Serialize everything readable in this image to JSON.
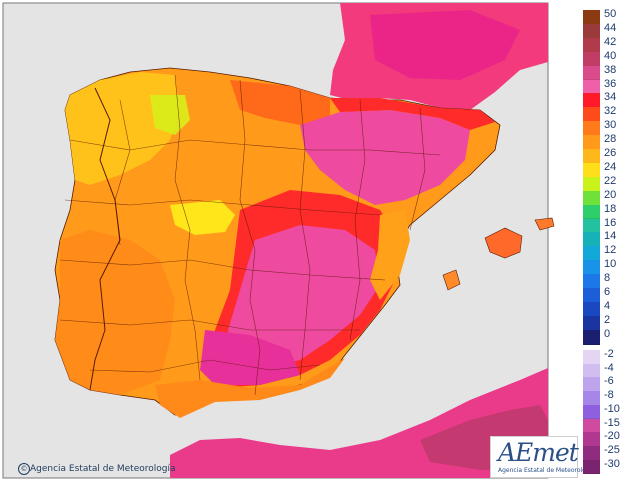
{
  "map": {
    "credit": "Agencia Estatal de Meteorología",
    "logo": {
      "word": "AEmet",
      "sub": "Agencia Estatal de Meteorología"
    }
  },
  "legend": [
    {
      "label": "50",
      "color": "#8b3a12"
    },
    {
      "label": "44",
      "color": "#9a3a3a"
    },
    {
      "label": "42",
      "color": "#b03b4a"
    },
    {
      "label": "40",
      "color": "#c03d65"
    },
    {
      "label": "38",
      "color": "#d94b8a"
    },
    {
      "label": "36",
      "color": "#f060a8"
    },
    {
      "label": "34",
      "color": "#ff1a2a"
    },
    {
      "label": "32",
      "color": "#ff4a1a"
    },
    {
      "label": "30",
      "color": "#ff7a1a"
    },
    {
      "label": "28",
      "color": "#ff9a1a"
    },
    {
      "label": "26",
      "color": "#ffb81a"
    },
    {
      "label": "24",
      "color": "#ffdf1a"
    },
    {
      "label": "22",
      "color": "#c8f21a"
    },
    {
      "label": "20",
      "color": "#70e03a"
    },
    {
      "label": "18",
      "color": "#2ecf6a"
    },
    {
      "label": "16",
      "color": "#22c2a0"
    },
    {
      "label": "14",
      "color": "#17b2b8"
    },
    {
      "label": "12",
      "color": "#12a8d8"
    },
    {
      "label": "10",
      "color": "#1893e8"
    },
    {
      "label": "8",
      "color": "#1c78e6"
    },
    {
      "label": "6",
      "color": "#1c5ed8"
    },
    {
      "label": "4",
      "color": "#1a48c0"
    },
    {
      "label": "2",
      "color": "#1a34a0"
    },
    {
      "label": "0",
      "color": "#1a1f70"
    },
    {
      "label": "-2",
      "color": "#e4d6f2"
    },
    {
      "label": "-4",
      "color": "#d2bdf0"
    },
    {
      "label": "-6",
      "color": "#bea4ec"
    },
    {
      "label": "-8",
      "color": "#a686e6"
    },
    {
      "label": "-10",
      "color": "#8e60e0"
    },
    {
      "label": "-15",
      "color": "#d04aa0"
    },
    {
      "label": "-20",
      "color": "#b03890"
    },
    {
      "label": "-25",
      "color": "#902c80"
    },
    {
      "label": "-30",
      "color": "#7a2470"
    }
  ]
}
